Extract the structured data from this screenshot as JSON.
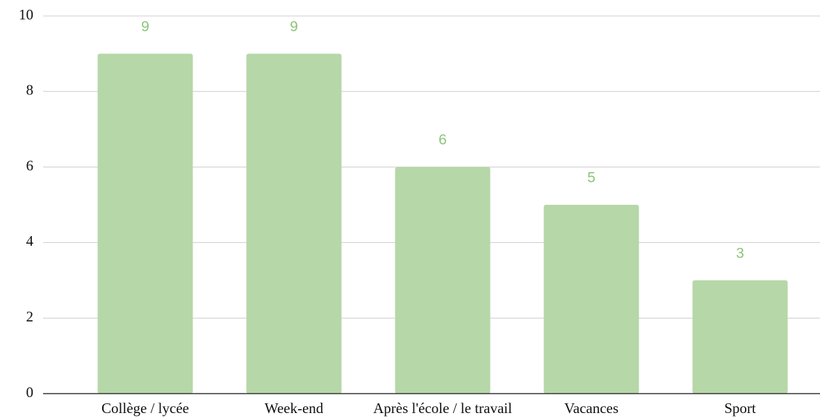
{
  "chart_data": {
    "type": "bar",
    "categories": [
      "Collège / lycée",
      "Week-end",
      "Après l'école / le travail",
      "Vacances",
      "Sport"
    ],
    "values": [
      9,
      9,
      6,
      5,
      3
    ],
    "color": "#b6d7a8",
    "label_color": "#8cc47a",
    "ylim": [
      0,
      10
    ],
    "yticks": [
      0,
      2,
      4,
      6,
      8,
      10
    ],
    "grid": true
  }
}
